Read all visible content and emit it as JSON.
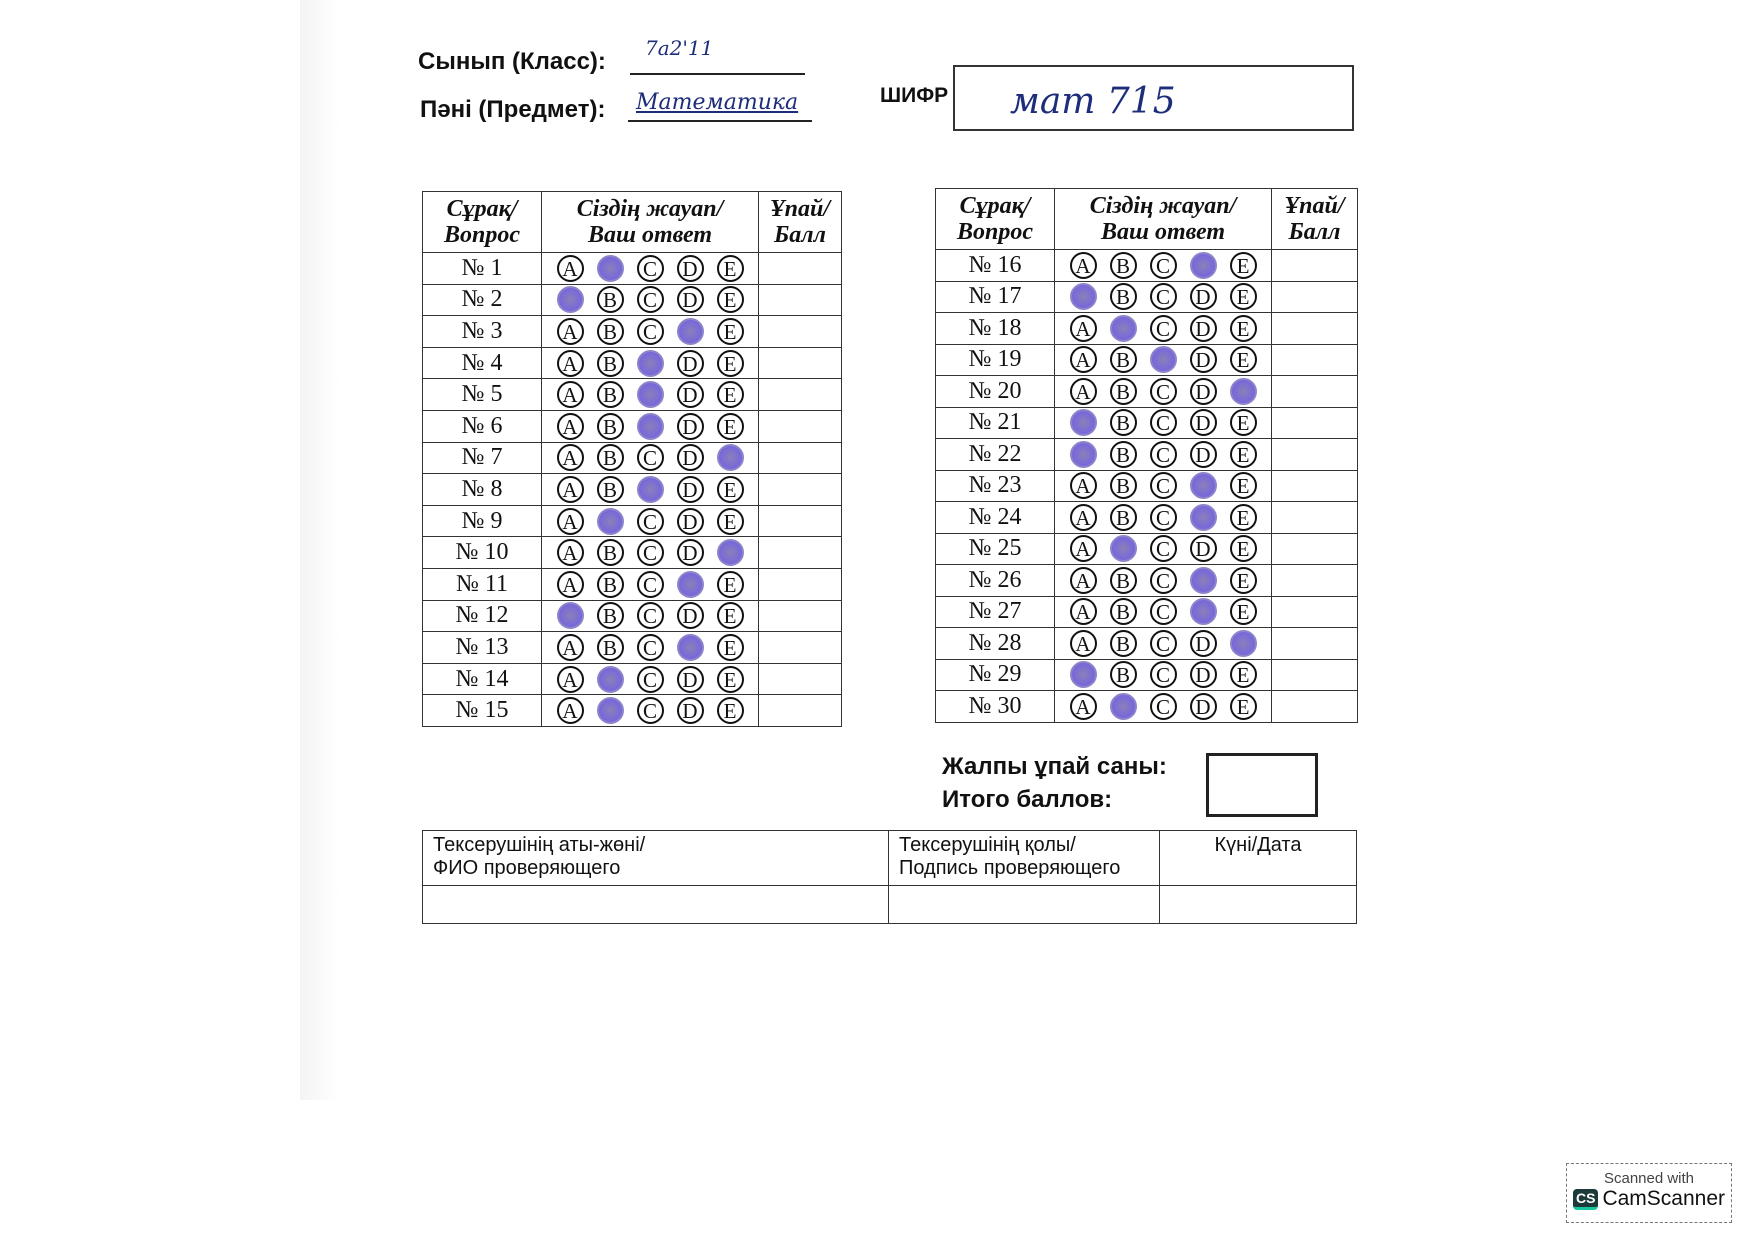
{
  "header": {
    "class_label": "Сынып (Класс):",
    "class_value": "7a2'11",
    "subject_label": "Пәні (Предмет):",
    "subject_value": "Математика",
    "cipher_label": "ШИФР",
    "cipher_value": "мат 715"
  },
  "table_headers": {
    "question": [
      "Сұрақ/",
      "Вопрос"
    ],
    "answer": [
      "Сіздің жауап/",
      "Ваш ответ"
    ],
    "score": [
      "Ұпай/",
      "Балл"
    ]
  },
  "options": [
    "A",
    "B",
    "C",
    "D",
    "E"
  ],
  "fill_color": "#7a6ad8",
  "left_rows": [
    {
      "label": "№ 1",
      "answer": "B",
      "score": ""
    },
    {
      "label": "№ 2",
      "answer": "A",
      "score": ""
    },
    {
      "label": "№ 3",
      "answer": "D",
      "score": ""
    },
    {
      "label": "№ 4",
      "answer": "C",
      "score": ""
    },
    {
      "label": "№ 5",
      "answer": "C",
      "score": ""
    },
    {
      "label": "№ 6",
      "answer": "C",
      "score": ""
    },
    {
      "label": "№ 7",
      "answer": "E",
      "score": ""
    },
    {
      "label": "№ 8",
      "answer": "C",
      "score": ""
    },
    {
      "label": "№ 9",
      "answer": "B",
      "score": ""
    },
    {
      "label": "№ 10",
      "answer": "E",
      "score": ""
    },
    {
      "label": "№ 11",
      "answer": "D",
      "score": ""
    },
    {
      "label": "№ 12",
      "answer": "A",
      "score": ""
    },
    {
      "label": "№ 13",
      "answer": "D",
      "score": ""
    },
    {
      "label": "№ 14",
      "answer": "B",
      "score": ""
    },
    {
      "label": "№ 15",
      "answer": "B",
      "score": ""
    }
  ],
  "right_rows": [
    {
      "label": "№ 16",
      "answer": "D",
      "score": ""
    },
    {
      "label": "№ 17",
      "answer": "A",
      "score": ""
    },
    {
      "label": "№ 18",
      "answer": "B",
      "score": ""
    },
    {
      "label": "№ 19",
      "answer": "C",
      "score": ""
    },
    {
      "label": "№ 20",
      "answer": "E",
      "score": ""
    },
    {
      "label": "№ 21",
      "answer": "A",
      "score": ""
    },
    {
      "label": "№ 22",
      "answer": "A",
      "score": ""
    },
    {
      "label": "№ 23",
      "answer": "D",
      "score": ""
    },
    {
      "label": "№ 24",
      "answer": "D",
      "score": ""
    },
    {
      "label": "№ 25",
      "answer": "B",
      "score": ""
    },
    {
      "label": "№ 26",
      "answer": "D",
      "score": ""
    },
    {
      "label": "№ 27",
      "answer": "D",
      "score": ""
    },
    {
      "label": "№ 28",
      "answer": "E",
      "score": ""
    },
    {
      "label": "№ 29",
      "answer": "A",
      "score": ""
    },
    {
      "label": "№ 30",
      "answer": "B",
      "score": ""
    }
  ],
  "total": {
    "label_kz": "Жалпы ұпай саны:",
    "label_ru": "Итого баллов:",
    "value": ""
  },
  "checker": {
    "name_label": [
      "Тексерушінің аты-жөні/",
      "ФИО проверяющего"
    ],
    "signature_label": [
      "Тексерушінің қолы/",
      "Подпись проверяющего"
    ],
    "date_label": "Күні/Дата",
    "name_value": "",
    "signature_value": "",
    "date_value": ""
  },
  "watermark": {
    "line1": "Scanned with",
    "logo": "CS",
    "brand": "CamScanner"
  }
}
